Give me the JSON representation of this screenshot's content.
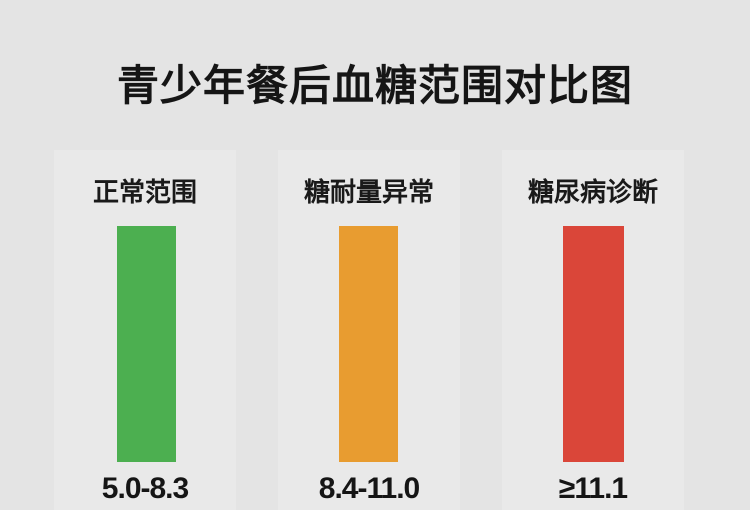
{
  "title": "青少年餐后血糖范围对比图",
  "categories": [
    {
      "label": "正常范围",
      "value": "5.0-8.3",
      "color": "#4caf50"
    },
    {
      "label": "糖耐量异常",
      "value": "8.4-11.0",
      "color": "#e89c30"
    },
    {
      "label": "糖尿病诊断",
      "value": "≥11.1",
      "color": "#da4639"
    }
  ]
}
